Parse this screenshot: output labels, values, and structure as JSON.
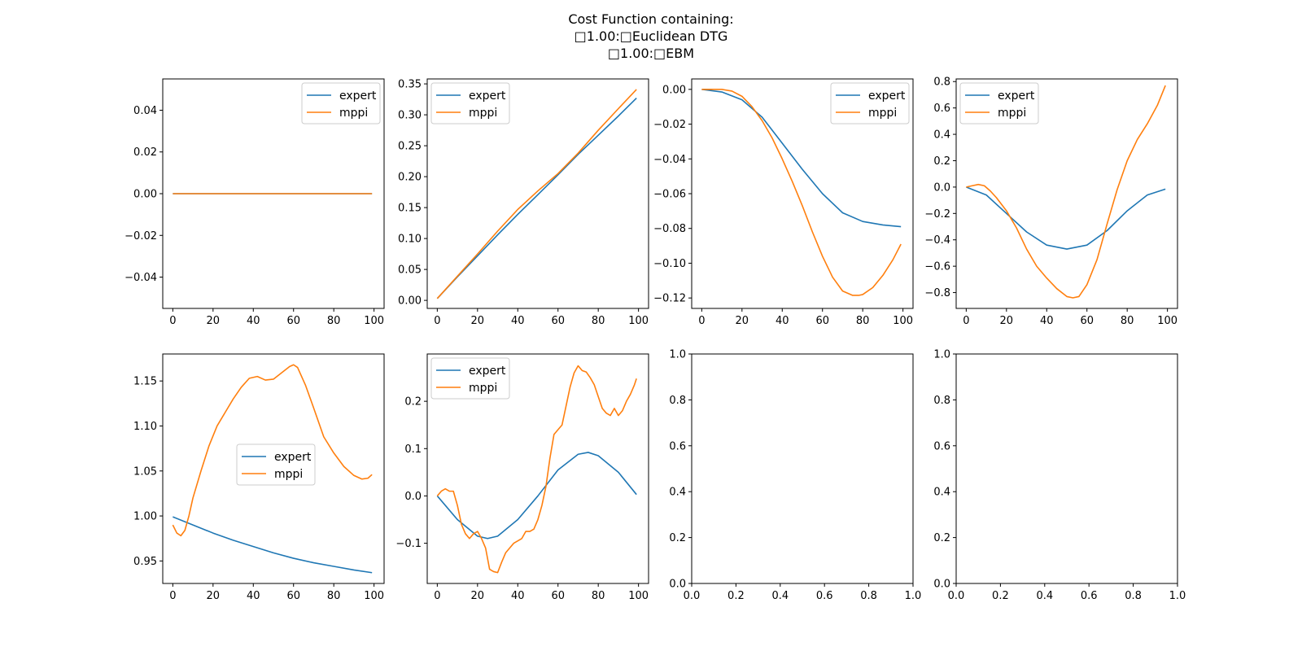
{
  "figure": {
    "title_lines": [
      "Cost Function containing:",
      "□1.00:□Euclidean DTG",
      "□1.00:□EBM"
    ]
  },
  "colors": {
    "expert": "#1f77b4",
    "mppi": "#ff7f0e",
    "axes": "#000000"
  },
  "chart_data": [
    {
      "type": "line",
      "panel": 1,
      "xlim": [
        -5,
        105
      ],
      "ylim": [
        -0.055,
        0.055
      ],
      "xticks": [
        0,
        20,
        40,
        60,
        80,
        100
      ],
      "yticks": [
        -0.04,
        -0.02,
        0.0,
        0.02,
        0.04
      ],
      "ytick_labels": [
        "−0.04",
        "−0.02",
        "0.00",
        "0.02",
        "0.04"
      ],
      "legend": "upper right",
      "series": [
        {
          "name": "expert",
          "x": [
            0,
            99
          ],
          "y": [
            0,
            0
          ]
        },
        {
          "name": "mppi",
          "x": [
            0,
            99
          ],
          "y": [
            0,
            0
          ]
        }
      ]
    },
    {
      "type": "line",
      "panel": 2,
      "xlim": [
        -5,
        105
      ],
      "ylim": [
        -0.013,
        0.358
      ],
      "xticks": [
        0,
        20,
        40,
        60,
        80,
        100
      ],
      "yticks": [
        0.0,
        0.05,
        0.1,
        0.15,
        0.2,
        0.25,
        0.3,
        0.35
      ],
      "ytick_labels": [
        "0.00",
        "0.05",
        "0.10",
        "0.15",
        "0.20",
        "0.25",
        "0.30",
        "0.35"
      ],
      "legend": "upper left",
      "series": [
        {
          "name": "expert",
          "x": [
            0,
            10,
            20,
            30,
            40,
            50,
            60,
            70,
            80,
            90,
            99
          ],
          "y": [
            0.003,
            0.038,
            0.072,
            0.106,
            0.139,
            0.171,
            0.203,
            0.236,
            0.267,
            0.298,
            0.327
          ]
        },
        {
          "name": "mppi",
          "x": [
            0,
            10,
            20,
            30,
            40,
            50,
            60,
            70,
            80,
            90,
            99
          ],
          "y": [
            0.003,
            0.039,
            0.075,
            0.112,
            0.147,
            0.177,
            0.205,
            0.238,
            0.275,
            0.31,
            0.341
          ]
        }
      ]
    },
    {
      "type": "line",
      "panel": 3,
      "xlim": [
        -5,
        105
      ],
      "ylim": [
        -0.126,
        0.006
      ],
      "xticks": [
        0,
        20,
        40,
        60,
        80,
        100
      ],
      "yticks": [
        0.0,
        -0.02,
        -0.04,
        -0.06,
        -0.08,
        -0.1,
        -0.12
      ],
      "ytick_labels": [
        "0.00",
        "−0.02",
        "−0.04",
        "−0.06",
        "−0.08",
        "−0.10",
        "−0.12"
      ],
      "legend": "upper right",
      "series": [
        {
          "name": "expert",
          "x": [
            0,
            10,
            20,
            30,
            40,
            50,
            60,
            70,
            80,
            90,
            99
          ],
          "y": [
            0,
            -0.0015,
            -0.006,
            -0.016,
            -0.031,
            -0.046,
            -0.06,
            -0.071,
            -0.076,
            -0.078,
            -0.079
          ]
        },
        {
          "name": "mppi",
          "x": [
            0,
            5,
            10,
            15,
            20,
            25,
            30,
            35,
            40,
            45,
            50,
            55,
            60,
            65,
            70,
            75,
            78,
            80,
            85,
            90,
            95,
            99
          ],
          "y": [
            0,
            0,
            0,
            -0.001,
            -0.004,
            -0.01,
            -0.018,
            -0.028,
            -0.04,
            -0.053,
            -0.067,
            -0.082,
            -0.096,
            -0.108,
            -0.116,
            -0.1185,
            -0.1185,
            -0.118,
            -0.114,
            -0.107,
            -0.098,
            -0.089
          ]
        }
      ]
    },
    {
      "type": "line",
      "panel": 4,
      "xlim": [
        -5,
        105
      ],
      "ylim": [
        -0.92,
        0.82
      ],
      "xticks": [
        0,
        20,
        40,
        60,
        80,
        100
      ],
      "yticks": [
        -0.8,
        -0.6,
        -0.4,
        -0.2,
        0.0,
        0.2,
        0.4,
        0.6,
        0.8
      ],
      "ytick_labels": [
        "−0.8",
        "−0.6",
        "−0.4",
        "−0.2",
        "0.0",
        "0.2",
        "0.4",
        "0.6",
        "0.8"
      ],
      "legend": "upper left",
      "series": [
        {
          "name": "expert",
          "x": [
            0,
            10,
            20,
            30,
            40,
            50,
            60,
            70,
            80,
            90,
            99
          ],
          "y": [
            0,
            -0.06,
            -0.2,
            -0.34,
            -0.44,
            -0.47,
            -0.44,
            -0.33,
            -0.18,
            -0.06,
            -0.015
          ]
        },
        {
          "name": "mppi",
          "x": [
            0,
            3,
            6,
            9,
            12,
            15,
            20,
            25,
            30,
            35,
            40,
            45,
            50,
            53,
            56,
            60,
            65,
            70,
            75,
            80,
            85,
            90,
            95,
            99
          ],
          "y": [
            0,
            0.01,
            0.02,
            0.01,
            -0.03,
            -0.08,
            -0.18,
            -0.31,
            -0.47,
            -0.6,
            -0.69,
            -0.77,
            -0.83,
            -0.84,
            -0.83,
            -0.74,
            -0.55,
            -0.28,
            -0.02,
            0.2,
            0.36,
            0.48,
            0.62,
            0.77
          ]
        }
      ]
    },
    {
      "type": "line",
      "panel": 5,
      "xlim": [
        -5,
        105
      ],
      "ylim": [
        0.925,
        1.18
      ],
      "xticks": [
        0,
        20,
        40,
        60,
        80,
        100
      ],
      "yticks": [
        0.95,
        1.0,
        1.05,
        1.1,
        1.15
      ],
      "ytick_labels": [
        "0.95",
        "1.00",
        "1.05",
        "1.10",
        "1.15"
      ],
      "legend": "center",
      "series": [
        {
          "name": "expert",
          "x": [
            0,
            10,
            20,
            30,
            40,
            50,
            60,
            70,
            80,
            90,
            99
          ],
          "y": [
            0.999,
            0.99,
            0.981,
            0.973,
            0.966,
            0.959,
            0.953,
            0.948,
            0.944,
            0.94,
            0.937
          ]
        },
        {
          "name": "mppi",
          "x": [
            0,
            2,
            4,
            6,
            8,
            10,
            14,
            18,
            22,
            26,
            30,
            34,
            38,
            42,
            46,
            50,
            54,
            58,
            60,
            62,
            66,
            70,
            75,
            80,
            85,
            90,
            94,
            97,
            99
          ],
          "y": [
            0.99,
            0.981,
            0.978,
            0.984,
            1.0,
            1.02,
            1.05,
            1.078,
            1.1,
            1.115,
            1.13,
            1.143,
            1.153,
            1.155,
            1.151,
            1.152,
            1.159,
            1.166,
            1.168,
            1.165,
            1.145,
            1.12,
            1.088,
            1.07,
            1.055,
            1.045,
            1.041,
            1.042,
            1.046
          ]
        }
      ]
    },
    {
      "type": "line",
      "panel": 6,
      "xlim": [
        -5,
        105
      ],
      "ylim": [
        -0.185,
        0.3
      ],
      "xticks": [
        0,
        20,
        40,
        60,
        80,
        100
      ],
      "yticks": [
        -0.1,
        0.0,
        0.1,
        0.2
      ],
      "ytick_labels": [
        "−0.1",
        "0.0",
        "0.1",
        "0.2"
      ],
      "legend": "upper left",
      "series": [
        {
          "name": "expert",
          "x": [
            0,
            10,
            20,
            25,
            30,
            40,
            50,
            60,
            70,
            75,
            80,
            90,
            99
          ],
          "y": [
            0,
            -0.05,
            -0.085,
            -0.09,
            -0.085,
            -0.05,
            0,
            0.055,
            0.088,
            0.092,
            0.085,
            0.05,
            0.003
          ]
        },
        {
          "name": "mppi",
          "x": [
            0,
            2,
            4,
            6,
            8,
            10,
            12,
            14,
            16,
            18,
            20,
            22,
            24,
            26,
            28,
            30,
            32,
            34,
            36,
            38,
            40,
            42,
            44,
            46,
            48,
            50,
            52,
            54,
            56,
            58,
            60,
            62,
            64,
            66,
            68,
            70,
            72,
            74,
            76,
            78,
            80,
            82,
            84,
            86,
            88,
            90,
            92,
            94,
            96,
            98,
            99
          ],
          "y": [
            0,
            0.01,
            0.015,
            0.01,
            0.01,
            -0.02,
            -0.06,
            -0.08,
            -0.09,
            -0.08,
            -0.075,
            -0.09,
            -0.11,
            -0.155,
            -0.16,
            -0.162,
            -0.14,
            -0.12,
            -0.11,
            -0.1,
            -0.095,
            -0.09,
            -0.075,
            -0.075,
            -0.07,
            -0.05,
            -0.02,
            0.02,
            0.08,
            0.13,
            0.14,
            0.15,
            0.19,
            0.23,
            0.26,
            0.275,
            0.265,
            0.262,
            0.25,
            0.235,
            0.21,
            0.185,
            0.175,
            0.17,
            0.185,
            0.17,
            0.18,
            0.2,
            0.215,
            0.235,
            0.248
          ]
        }
      ]
    },
    {
      "type": "line",
      "panel": 7,
      "xlim": [
        0,
        1
      ],
      "ylim": [
        0,
        1
      ],
      "xticks": [
        0,
        0.2,
        0.4,
        0.6,
        0.8,
        1.0
      ],
      "yticks": [
        0,
        0.2,
        0.4,
        0.6,
        0.8,
        1.0
      ],
      "xtick_labels": [
        "0.0",
        "0.2",
        "0.4",
        "0.6",
        "0.8",
        "1.0"
      ],
      "ytick_labels": [
        "0.0",
        "0.2",
        "0.4",
        "0.6",
        "0.8",
        "1.0"
      ],
      "series": []
    },
    {
      "type": "line",
      "panel": 8,
      "xlim": [
        0,
        1
      ],
      "ylim": [
        0,
        1
      ],
      "xticks": [
        0,
        0.2,
        0.4,
        0.6,
        0.8,
        1.0
      ],
      "yticks": [
        0,
        0.2,
        0.4,
        0.6,
        0.8,
        1.0
      ],
      "xtick_labels": [
        "0.0",
        "0.2",
        "0.4",
        "0.6",
        "0.8",
        "1.0"
      ],
      "ytick_labels": [
        "0.0",
        "0.2",
        "0.4",
        "0.6",
        "0.8",
        "1.0"
      ],
      "series": []
    }
  ]
}
